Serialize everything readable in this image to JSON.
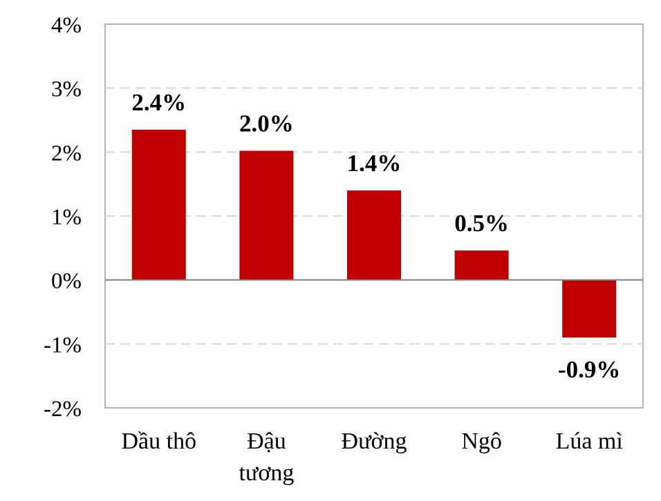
{
  "chart_data": {
    "type": "bar",
    "categories": [
      [
        "Dầu thô"
      ],
      [
        "Đậu",
        "tương"
      ],
      [
        "Đường"
      ],
      [
        "Ngô"
      ],
      [
        "Lúa mì"
      ]
    ],
    "values": [
      2.35,
      2.02,
      1.4,
      0.46,
      -0.9
    ],
    "data_labels": [
      "2.4%",
      "2.0%",
      "1.4%",
      "0.5%",
      "-0.9%"
    ],
    "ylim": [
      -2,
      4
    ],
    "yticks": [
      4,
      3,
      2,
      1,
      0,
      -1,
      -2
    ],
    "ytick_labels": [
      "4%",
      "3%",
      "2%",
      "1%",
      "0%",
      "-1%",
      "-2%"
    ],
    "grid": "horizontal dashed",
    "bar_color": "#c00000",
    "title": "",
    "xlabel": "",
    "ylabel": ""
  }
}
